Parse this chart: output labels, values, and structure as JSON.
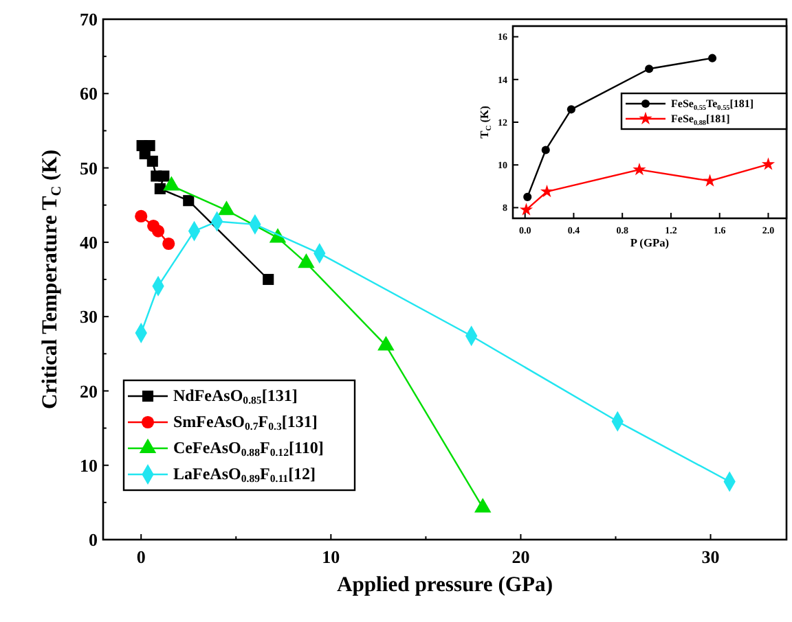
{
  "chart_data": [
    {
      "type": "line",
      "xlabel": "Applied pressure (GPa)",
      "ylabel": "Critical Temperature T$_{C}$ (K)",
      "xlim": [
        -2,
        34
      ],
      "ylim": [
        0,
        70
      ],
      "xticks": [
        0,
        {
          "value": 5,
          "label": null
        },
        10,
        {
          "value": 15,
          "label": null
        },
        20,
        {
          "value": 25,
          "label": null
        },
        30
      ],
      "yticks": [
        0,
        {
          "value": 5,
          "label": null
        },
        10,
        {
          "value": 15,
          "label": null
        },
        20,
        {
          "value": 25,
          "label": null
        },
        30,
        {
          "value": 35,
          "label": null
        },
        40,
        {
          "value": 45,
          "label": null
        },
        50,
        {
          "value": 55,
          "label": null
        },
        60,
        {
          "value": 65,
          "label": null
        },
        70
      ],
      "legend": "bottom left",
      "grid": false,
      "series": [
        {
          "name": "NdFeAsO$_{0.85}$[131]",
          "color": "#000000",
          "marker": "square",
          "x": [
            0.05,
            0.45,
            0.2,
            0.6,
            0.8,
            1.2,
            1.0,
            2.5,
            6.7
          ],
          "values": [
            53.0,
            53.0,
            51.9,
            50.9,
            48.9,
            48.9,
            47.2,
            45.6,
            35.0
          ]
        },
        {
          "name": "SmFeAsO$_{0.7}$F$_{0.3}$[131]",
          "color": "#ff0000",
          "marker": "circle",
          "x": [
            0,
            0.65,
            0.9,
            1.45
          ],
          "values": [
            43.5,
            42.2,
            41.5,
            39.8
          ]
        },
        {
          "name": "CeFeAsO$_{0.88}$F$_{0.12}$[110]",
          "color": "#00dd00",
          "marker": "triangle",
          "x": [
            1.6,
            4.5,
            7.2,
            8.7,
            12.9,
            18.0
          ],
          "values": [
            47.6,
            44.3,
            40.6,
            37.2,
            26.1,
            4.3
          ]
        },
        {
          "name": "LaFeAsO$_{0.89}$F$_{0.11}$[12]",
          "color": "#22e5f0",
          "marker": "diamond",
          "x": [
            0,
            0.9,
            2.8,
            4.0,
            6.0,
            9.4,
            17.4,
            25.1,
            31.0
          ],
          "values": [
            27.8,
            34.1,
            41.5,
            42.8,
            42.4,
            38.5,
            27.4,
            15.9,
            7.8
          ]
        }
      ]
    },
    {
      "type": "line",
      "xlabel": "P (GPa)",
      "ylabel": "T$_{C}$ (K)",
      "xlim": [
        -0.1,
        2.15
      ],
      "ylim": [
        7.5,
        16.5
      ],
      "xticks": [
        {
          "value": 0,
          "label": "0.0"
        },
        0.4,
        0.8,
        1.2,
        1.6,
        {
          "value": 2,
          "label": "2.0"
        }
      ],
      "yticks": [
        8,
        10,
        12,
        14,
        16
      ],
      "legend": "right",
      "grid": false,
      "series": [
        {
          "name": "FeSe$_{0.55}$Te$_{0.55}$[181]",
          "color": "#000000",
          "marker": "circle",
          "x": [
            0.02,
            0.17,
            0.38,
            1.02,
            1.54
          ],
          "values": [
            8.5,
            10.7,
            12.6,
            14.5,
            15.0
          ]
        },
        {
          "name": "FeSe$_{0.88}$[181]",
          "color": "#ff0000",
          "marker": "star",
          "x": [
            0.01,
            0.18,
            0.94,
            1.52,
            2.0
          ],
          "values": [
            7.9,
            8.75,
            9.78,
            9.25,
            10.03
          ]
        }
      ]
    }
  ]
}
